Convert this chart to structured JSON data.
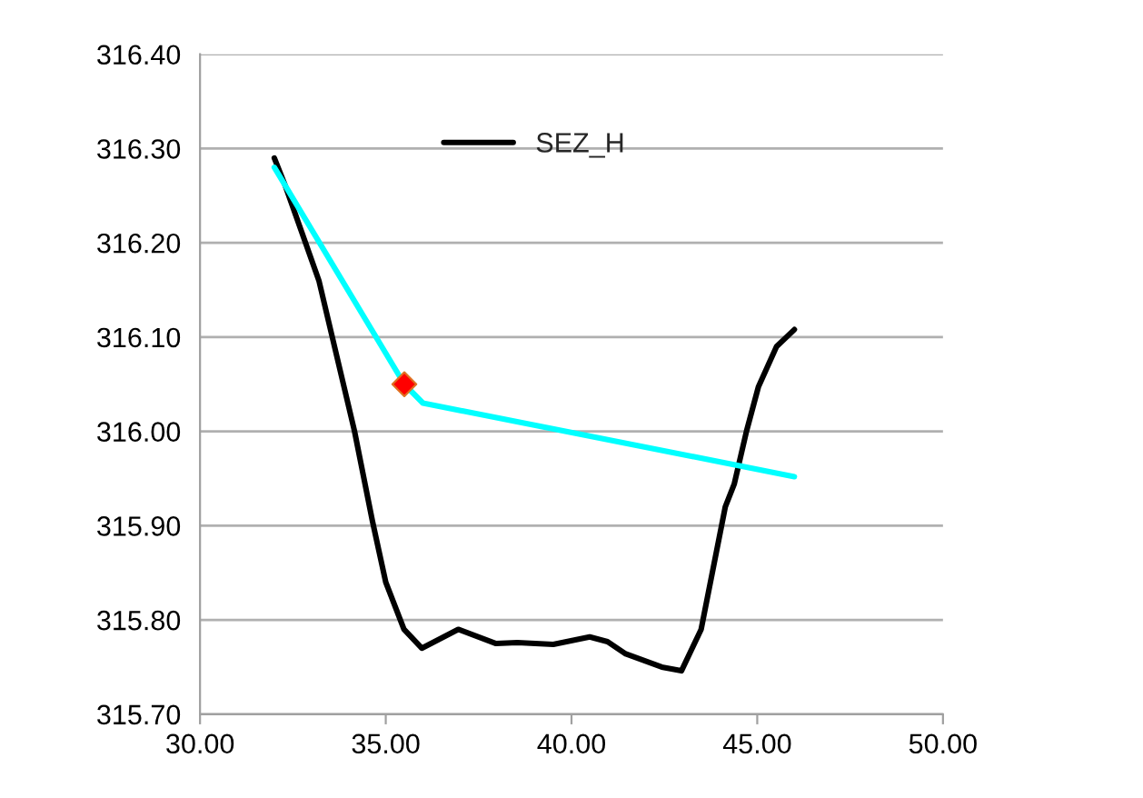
{
  "chart_data": {
    "type": "line",
    "series": [
      {
        "name": "SEZ_H",
        "color": "#000000",
        "x": [
          32.0,
          32.3,
          33.2,
          34.16,
          34.64,
          35.0,
          35.49,
          35.97,
          36.95,
          37.97,
          38.54,
          39.51,
          40.49,
          40.97,
          41.46,
          42.43,
          42.96,
          43.49,
          44.14,
          44.38,
          44.71,
          45.03,
          45.52,
          46.0
        ],
        "values": [
          316.29,
          316.26,
          316.16,
          316.0,
          315.905,
          315.84,
          315.79,
          315.77,
          315.79,
          315.775,
          315.776,
          315.774,
          315.782,
          315.777,
          315.764,
          315.75,
          315.746,
          315.79,
          315.92,
          315.944,
          316.0,
          316.047,
          316.09,
          316.108
        ]
      },
      {
        "color": "#00ffff",
        "x": [
          32.0,
          35.5,
          36.0,
          46.0
        ],
        "values": [
          316.28,
          316.05,
          316.03,
          315.952
        ]
      },
      {
        "color": "#ff0000",
        "type": "scatter",
        "marker": "diamond",
        "x": [
          35.5
        ],
        "values": [
          316.05
        ]
      }
    ],
    "xlim": [
      30,
      50
    ],
    "xticks": [
      {
        "value": 30,
        "label": "30.00"
      },
      {
        "value": 35,
        "label": "35.00"
      },
      {
        "value": 40,
        "label": "40.00"
      },
      {
        "value": 45,
        "label": "45.00"
      },
      {
        "value": 50,
        "label": "50.00"
      }
    ],
    "ylim": [
      315.7,
      316.4
    ],
    "yticks": [
      {
        "value": 315.7,
        "label": "315.70"
      },
      {
        "value": 315.8,
        "label": "315.80"
      },
      {
        "value": 315.9,
        "label": "315.90"
      },
      {
        "value": 316.0,
        "label": "316.00"
      },
      {
        "value": 316.1,
        "label": "316.10"
      },
      {
        "value": 316.2,
        "label": "316.20"
      },
      {
        "value": 316.3,
        "label": "316.30"
      },
      {
        "value": 316.4,
        "label": "316.40"
      }
    ],
    "grid": "y",
    "legend": "top"
  }
}
